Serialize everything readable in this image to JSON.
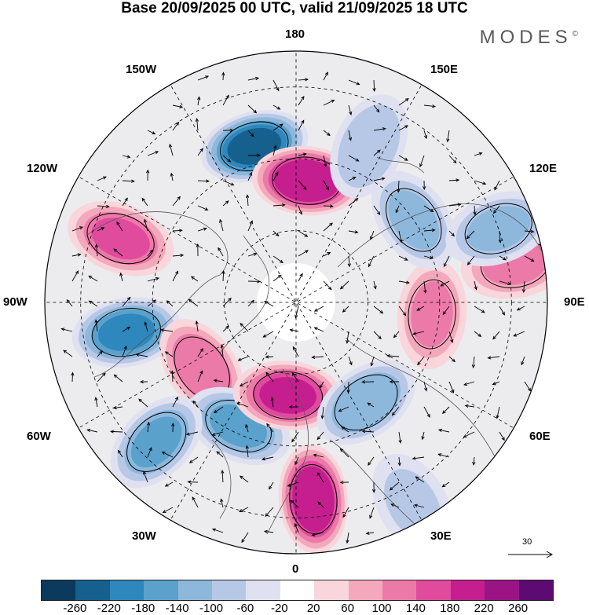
{
  "title": "Base 20/09/2025 00 UTC, valid 21/09/2025 18 UTC",
  "brand": "MODES",
  "brand_mark": "©",
  "longitude_labels": {
    "top": "180",
    "top_left": "150W",
    "top_right": "150E",
    "upper_left": "120W",
    "upper_right": "120E",
    "left": "90W",
    "right": "90E",
    "lower_left": "60W",
    "lower_right": "60E",
    "bottom_left": "30W",
    "bottom_right": "30E",
    "bottom": "0"
  },
  "reference_vector": {
    "label": "30"
  },
  "colorbar": {
    "colors": [
      "#0b3a5c",
      "#16608e",
      "#2e87bd",
      "#5aa1cc",
      "#8db8dc",
      "#b7c8e6",
      "#dfe1f0",
      "#ffffff",
      "#f8d6db",
      "#f3a8bc",
      "#ec7aa8",
      "#e04b9e",
      "#c51e8f",
      "#9b1486",
      "#5b0b72"
    ],
    "tick_labels": [
      "-260",
      "-220",
      "-180",
      "-140",
      "-100",
      "-60",
      "-20",
      "20",
      "60",
      "100",
      "140",
      "180",
      "220",
      "260"
    ]
  },
  "anomaly_centers": [
    {
      "sign": "negative",
      "value": -220,
      "lon": -165,
      "colat": 45
    },
    {
      "sign": "positive",
      "value": 200,
      "lon": 175,
      "colat": 34
    },
    {
      "sign": "positive",
      "value": 140,
      "lon": -110,
      "colat": 52
    },
    {
      "sign": "negative",
      "value": -180,
      "lon": -80,
      "colat": 48
    },
    {
      "sign": "positive",
      "value": 120,
      "lon": -55,
      "colat": 32
    },
    {
      "sign": "negative",
      "value": -140,
      "lon": -25,
      "colat": 38
    },
    {
      "sign": "positive",
      "value": 180,
      "lon": -5,
      "colat": 26
    },
    {
      "sign": "positive",
      "value": 200,
      "lon": 5,
      "colat": 55
    },
    {
      "sign": "negative",
      "value": -140,
      "lon": -45,
      "colat": 55
    },
    {
      "sign": "negative",
      "value": -120,
      "lon": 35,
      "colat": 34
    },
    {
      "sign": "positive",
      "value": 100,
      "lon": 85,
      "colat": 38
    },
    {
      "sign": "positive",
      "value": 100,
      "lon": 100,
      "colat": 62
    },
    {
      "sign": "negative",
      "value": -100,
      "lon": 125,
      "colat": 40
    },
    {
      "sign": "negative",
      "value": -100,
      "lon": 110,
      "colat": 60
    },
    {
      "sign": "negative",
      "value": -80,
      "lon": 155,
      "colat": 48
    },
    {
      "sign": "negative",
      "value": -60,
      "lon": 30,
      "colat": 65
    }
  ]
}
